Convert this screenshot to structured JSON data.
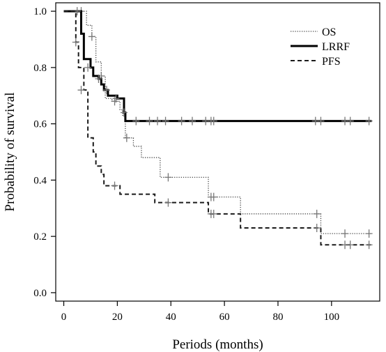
{
  "chart_data": {
    "type": "line",
    "title": "",
    "xlabel": "Periods (months)",
    "ylabel": "Probability of survival",
    "xlim": [
      -3,
      118
    ],
    "ylim": [
      -0.03,
      1.03
    ],
    "xticks": [
      "0",
      "20",
      "40",
      "60",
      "80",
      "100"
    ],
    "yticks": [
      "0.0",
      "0.2",
      "0.4",
      "0.6",
      "0.8",
      "1.0"
    ],
    "grid": false,
    "legend_position": "top-right",
    "series": [
      {
        "name": "OS",
        "style": "dotted",
        "color": "#4a4a4a",
        "x": [
          0,
          6.5,
          8.5,
          10.5,
          12,
          14,
          15.5,
          18,
          21,
          22,
          23,
          24.5,
          26,
          29,
          32,
          36,
          54,
          58,
          66,
          95,
          96,
          115
        ],
        "y": [
          1.0,
          1.0,
          0.95,
          0.91,
          0.82,
          0.77,
          0.69,
          0.68,
          0.65,
          0.63,
          0.55,
          0.55,
          0.52,
          0.48,
          0.48,
          0.41,
          0.34,
          0.34,
          0.28,
          0.28,
          0.21,
          0.21
        ],
        "censored": [
          [
            6.5,
            1.0
          ],
          [
            10.5,
            0.91
          ],
          [
            14,
            0.77
          ],
          [
            19,
            0.68
          ],
          [
            23.5,
            0.55
          ],
          [
            39,
            0.41
          ],
          [
            55,
            0.34
          ],
          [
            56,
            0.34
          ],
          [
            94.5,
            0.28
          ],
          [
            105,
            0.21
          ],
          [
            114,
            0.21
          ]
        ]
      },
      {
        "name": "LRRF",
        "style": "solid",
        "color": "#000000",
        "x": [
          0,
          5,
          6.5,
          7.5,
          10,
          11,
          13,
          14,
          15,
          16.5,
          20,
          22.5,
          23,
          115
        ],
        "y": [
          1.0,
          1.0,
          0.92,
          0.83,
          0.8,
          0.77,
          0.76,
          0.74,
          0.72,
          0.7,
          0.69,
          0.64,
          0.61,
          0.61
        ],
        "censored": [
          [
            5,
            1.0
          ],
          [
            9,
            0.8
          ],
          [
            13,
            0.76
          ],
          [
            16,
            0.72
          ],
          [
            19.5,
            0.69
          ],
          [
            22.5,
            0.64
          ],
          [
            27,
            0.61
          ],
          [
            32,
            0.61
          ],
          [
            35,
            0.61
          ],
          [
            38,
            0.61
          ],
          [
            44,
            0.61
          ],
          [
            48,
            0.61
          ],
          [
            53,
            0.61
          ],
          [
            55,
            0.61
          ],
          [
            56,
            0.61
          ],
          [
            94,
            0.61
          ],
          [
            96,
            0.61
          ],
          [
            105,
            0.61
          ],
          [
            107,
            0.61
          ],
          [
            114,
            0.61
          ]
        ]
      },
      {
        "name": "PFS",
        "style": "dashed",
        "color": "#1a1a1a",
        "x": [
          0,
          4.5,
          5.5,
          7.5,
          9,
          11,
          12,
          14,
          15,
          17,
          21,
          34,
          54,
          57,
          66,
          95,
          96,
          115
        ],
        "y": [
          1.0,
          0.89,
          0.8,
          0.72,
          0.55,
          0.5,
          0.45,
          0.42,
          0.38,
          0.38,
          0.35,
          0.32,
          0.28,
          0.28,
          0.23,
          0.23,
          0.17,
          0.17
        ],
        "censored": [
          [
            4.5,
            0.89
          ],
          [
            6.5,
            0.72
          ],
          [
            19,
            0.38
          ],
          [
            39,
            0.32
          ],
          [
            55,
            0.28
          ],
          [
            56,
            0.28
          ],
          [
            94.5,
            0.23
          ],
          [
            105,
            0.17
          ],
          [
            107,
            0.17
          ],
          [
            114,
            0.17
          ]
        ]
      }
    ]
  }
}
